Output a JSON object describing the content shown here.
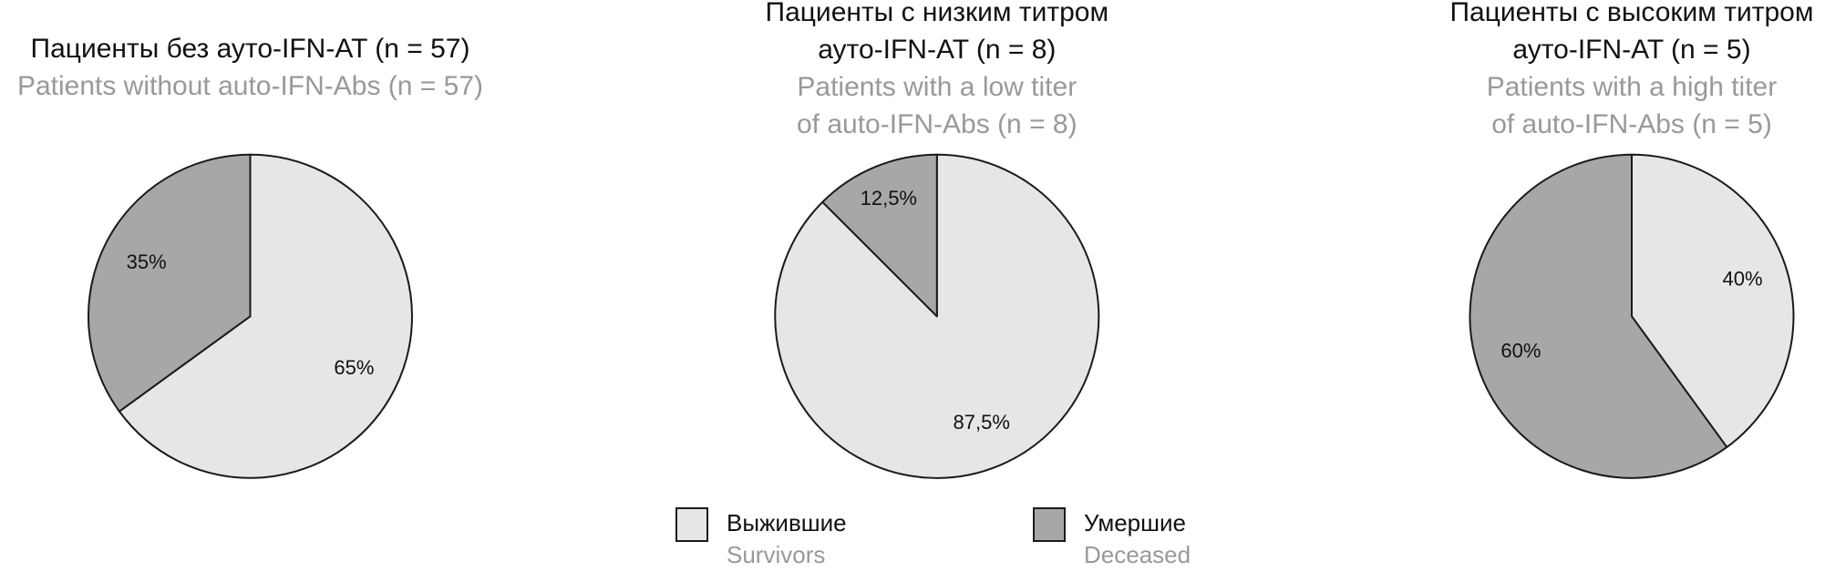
{
  "chart_data": [
    {
      "type": "pie",
      "title_lines": [
        "Пациенты без ауто-IFN-AT (n = 57)"
      ],
      "subtitle_lines": [
        "Patients without auto-IFN-Abs (n = 57)"
      ],
      "values": [
        65,
        35
      ],
      "value_labels": [
        "65%",
        "35%"
      ]
    },
    {
      "type": "pie",
      "title_lines": [
        "Пациенты с низким титром",
        "ауто-IFN-AT (n = 8)"
      ],
      "subtitle_lines": [
        "Patients with a low titer",
        "of auto-IFN-Abs (n = 8)"
      ],
      "values": [
        87.5,
        12.5
      ],
      "value_labels": [
        "87,5%",
        "12,5%"
      ]
    },
    {
      "type": "pie",
      "title_lines": [
        "Пациенты с высоким титром",
        "ауто-IFN-AT (n = 5)"
      ],
      "subtitle_lines": [
        "Patients with a high titer",
        "of auto-IFN-Abs (n = 5)"
      ],
      "values": [
        40,
        60
      ],
      "value_labels": [
        "40%",
        "60%"
      ]
    }
  ],
  "legend": [
    {
      "label": "Выжившие",
      "sublabel": "Survivors",
      "color": "#e6e6e6"
    },
    {
      "label": "Умершие",
      "sublabel": "Deceased",
      "color": "#a7a7a9"
    }
  ]
}
